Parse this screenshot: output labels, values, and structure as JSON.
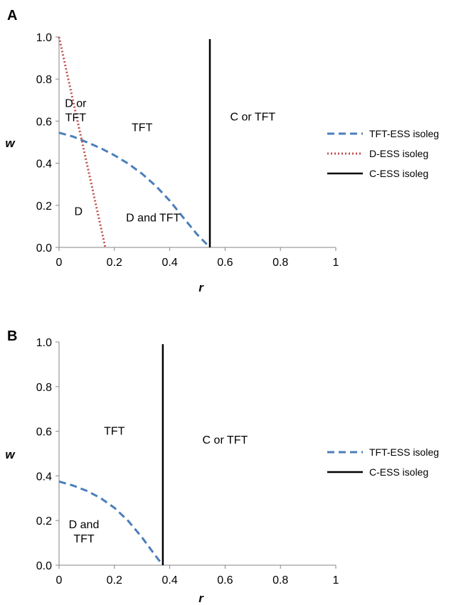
{
  "chart_data": [
    {
      "panel_label": "A",
      "type": "line",
      "xlabel": "r",
      "ylabel": "w",
      "xlim": [
        0,
        1
      ],
      "ylim": [
        0,
        1
      ],
      "xticks": [
        "0",
        "0.2",
        "0.4",
        "0.6",
        "0.8",
        "1"
      ],
      "yticks": [
        "0.0",
        "0.2",
        "0.4",
        "0.6",
        "0.8",
        "1.0"
      ],
      "grid": false,
      "legend_position": "right",
      "series": [
        {
          "name": "TFT-ESS isoleg",
          "style": "dashed",
          "color": "#4a7ebb",
          "x": [
            0.0,
            0.05,
            0.1,
            0.15,
            0.2,
            0.25,
            0.3,
            0.35,
            0.4,
            0.45,
            0.5,
            0.545
          ],
          "y": [
            0.545,
            0.527,
            0.5,
            0.472,
            0.438,
            0.398,
            0.35,
            0.292,
            0.222,
            0.14,
            0.06,
            0.0
          ]
        },
        {
          "name": "D-ESS isoleg",
          "style": "dotted",
          "color": "#c0504d",
          "x": [
            0.0,
            0.167
          ],
          "y": [
            1.0,
            0.0
          ]
        },
        {
          "name": "C-ESS isoleg",
          "style": "solid",
          "color": "#000000",
          "x": [
            0.545,
            0.545
          ],
          "y": [
            0.0,
            0.99
          ]
        }
      ],
      "annotations": [
        {
          "lines": [
            "D or",
            "TFT"
          ],
          "x": 0.06,
          "y": 0.65
        },
        {
          "lines": [
            "TFT"
          ],
          "x": 0.3,
          "y": 0.57
        },
        {
          "lines": [
            "C or TFT"
          ],
          "x": 0.7,
          "y": 0.62
        },
        {
          "lines": [
            "D"
          ],
          "x": 0.07,
          "y": 0.17
        },
        {
          "lines": [
            "D and TFT"
          ],
          "x": 0.34,
          "y": 0.14
        }
      ]
    },
    {
      "panel_label": "B",
      "type": "line",
      "xlabel": "r",
      "ylabel": "w",
      "xlim": [
        0,
        1
      ],
      "ylim": [
        0,
        1
      ],
      "xticks": [
        "0",
        "0.2",
        "0.4",
        "0.6",
        "0.8",
        "1"
      ],
      "yticks": [
        "0.0",
        "0.2",
        "0.4",
        "0.6",
        "0.8",
        "1.0"
      ],
      "grid": false,
      "legend_position": "right",
      "series": [
        {
          "name": "TFT-ESS isoleg",
          "style": "dashed",
          "color": "#4a7ebb",
          "x": [
            0.0,
            0.05,
            0.1,
            0.15,
            0.2,
            0.25,
            0.3,
            0.35,
            0.375
          ],
          "y": [
            0.375,
            0.357,
            0.333,
            0.301,
            0.257,
            0.198,
            0.124,
            0.04,
            0.0
          ]
        },
        {
          "name": "C-ESS isoleg",
          "style": "solid",
          "color": "#000000",
          "x": [
            0.375,
            0.375
          ],
          "y": [
            0.0,
            0.99
          ]
        }
      ],
      "annotations": [
        {
          "lines": [
            "TFT"
          ],
          "x": 0.2,
          "y": 0.6
        },
        {
          "lines": [
            "C or TFT"
          ],
          "x": 0.6,
          "y": 0.56
        },
        {
          "lines": [
            "D and",
            "TFT"
          ],
          "x": 0.09,
          "y": 0.15
        }
      ]
    }
  ]
}
